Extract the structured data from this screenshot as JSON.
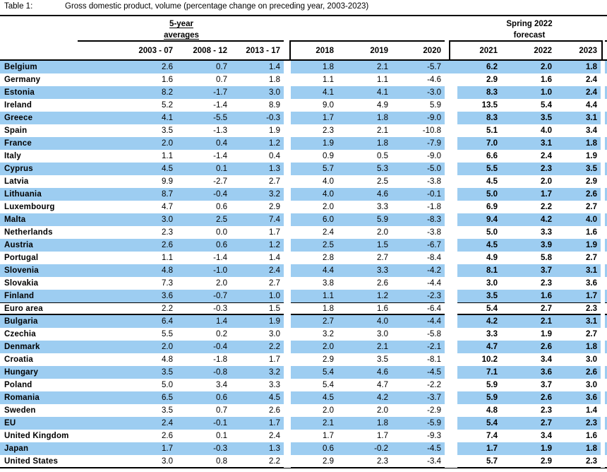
{
  "title": {
    "label": "Table 1:",
    "text": "Gross domestic product, volume (percentage change on preceding year, 2003-2023)"
  },
  "header": {
    "group1_line1": "5-year",
    "group1_line2": "averages",
    "group3_line1": "Spring 2022",
    "group3_line2": "forecast",
    "columns": [
      "2003 - 07",
      "2008 - 12",
      "2013 - 17",
      "2018",
      "2019",
      "2020",
      "2021",
      "2022",
      "2023"
    ]
  },
  "colors": {
    "row_highlight": "#9DCDF1",
    "row_plain": "#FFFFFF",
    "rule": "#000000"
  },
  "rows": [
    {
      "name": "Belgium",
      "shaded": true,
      "values": [
        "2.6",
        "0.7",
        "1.4",
        "1.8",
        "2.1",
        "-5.7",
        "6.2",
        "2.0",
        "1.8"
      ]
    },
    {
      "name": "Germany",
      "shaded": false,
      "values": [
        "1.6",
        "0.7",
        "1.8",
        "1.1",
        "1.1",
        "-4.6",
        "2.9",
        "1.6",
        "2.4"
      ]
    },
    {
      "name": "Estonia",
      "shaded": true,
      "values": [
        "8.2",
        "-1.7",
        "3.0",
        "4.1",
        "4.1",
        "-3.0",
        "8.3",
        "1.0",
        "2.4"
      ]
    },
    {
      "name": "Ireland",
      "shaded": false,
      "values": [
        "5.2",
        "-1.4",
        "8.9",
        "9.0",
        "4.9",
        "5.9",
        "13.5",
        "5.4",
        "4.4"
      ]
    },
    {
      "name": "Greece",
      "shaded": true,
      "values": [
        "4.1",
        "-5.5",
        "-0.3",
        "1.7",
        "1.8",
        "-9.0",
        "8.3",
        "3.5",
        "3.1"
      ]
    },
    {
      "name": "Spain",
      "shaded": false,
      "values": [
        "3.5",
        "-1.3",
        "1.9",
        "2.3",
        "2.1",
        "-10.8",
        "5.1",
        "4.0",
        "3.4"
      ]
    },
    {
      "name": "France",
      "shaded": true,
      "values": [
        "2.0",
        "0.4",
        "1.2",
        "1.9",
        "1.8",
        "-7.9",
        "7.0",
        "3.1",
        "1.8"
      ]
    },
    {
      "name": "Italy",
      "shaded": false,
      "values": [
        "1.1",
        "-1.4",
        "0.4",
        "0.9",
        "0.5",
        "-9.0",
        "6.6",
        "2.4",
        "1.9"
      ]
    },
    {
      "name": "Cyprus",
      "shaded": true,
      "values": [
        "4.5",
        "0.1",
        "1.3",
        "5.7",
        "5.3",
        "-5.0",
        "5.5",
        "2.3",
        "3.5"
      ]
    },
    {
      "name": "Latvia",
      "shaded": false,
      "values": [
        "9.9",
        "-2.7",
        "2.7",
        "4.0",
        "2.5",
        "-3.8",
        "4.5",
        "2.0",
        "2.9"
      ]
    },
    {
      "name": "Lithuania",
      "shaded": true,
      "values": [
        "8.7",
        "-0.4",
        "3.2",
        "4.0",
        "4.6",
        "-0.1",
        "5.0",
        "1.7",
        "2.6"
      ]
    },
    {
      "name": "Luxembourg",
      "shaded": false,
      "values": [
        "4.7",
        "0.6",
        "2.9",
        "2.0",
        "3.3",
        "-1.8",
        "6.9",
        "2.2",
        "2.7"
      ]
    },
    {
      "name": "Malta",
      "shaded": true,
      "values": [
        "3.0",
        "2.5",
        "7.4",
        "6.0",
        "5.9",
        "-8.3",
        "9.4",
        "4.2",
        "4.0"
      ]
    },
    {
      "name": "Netherlands",
      "shaded": false,
      "values": [
        "2.3",
        "0.0",
        "1.7",
        "2.4",
        "2.0",
        "-3.8",
        "5.0",
        "3.3",
        "1.6"
      ]
    },
    {
      "name": "Austria",
      "shaded": true,
      "values": [
        "2.6",
        "0.6",
        "1.2",
        "2.5",
        "1.5",
        "-6.7",
        "4.5",
        "3.9",
        "1.9"
      ]
    },
    {
      "name": "Portugal",
      "shaded": false,
      "values": [
        "1.1",
        "-1.4",
        "1.4",
        "2.8",
        "2.7",
        "-8.4",
        "4.9",
        "5.8",
        "2.7"
      ]
    },
    {
      "name": "Slovenia",
      "shaded": true,
      "values": [
        "4.8",
        "-1.0",
        "2.4",
        "4.4",
        "3.3",
        "-4.2",
        "8.1",
        "3.7",
        "3.1"
      ]
    },
    {
      "name": "Slovakia",
      "shaded": false,
      "values": [
        "7.3",
        "2.0",
        "2.7",
        "3.8",
        "2.6",
        "-4.4",
        "3.0",
        "2.3",
        "3.6"
      ]
    },
    {
      "name": "Finland",
      "shaded": true,
      "values": [
        "3.6",
        "-0.7",
        "1.0",
        "1.1",
        "1.2",
        "-2.3",
        "3.5",
        "1.6",
        "1.7"
      ]
    },
    {
      "name": "Euro area",
      "shaded": false,
      "values": [
        "2.2",
        "-0.3",
        "1.5",
        "1.8",
        "1.6",
        "-6.4",
        "5.4",
        "2.7",
        "2.3"
      ]
    },
    {
      "name": "Bulgaria",
      "shaded": true,
      "values": [
        "6.4",
        "1.4",
        "1.9",
        "2.7",
        "4.0",
        "-4.4",
        "4.2",
        "2.1",
        "3.1"
      ]
    },
    {
      "name": "Czechia",
      "shaded": false,
      "values": [
        "5.5",
        "0.2",
        "3.0",
        "3.2",
        "3.0",
        "-5.8",
        "3.3",
        "1.9",
        "2.7"
      ]
    },
    {
      "name": "Denmark",
      "shaded": true,
      "values": [
        "2.0",
        "-0.4",
        "2.2",
        "2.0",
        "2.1",
        "-2.1",
        "4.7",
        "2.6",
        "1.8"
      ]
    },
    {
      "name": "Croatia",
      "shaded": false,
      "values": [
        "4.8",
        "-1.8",
        "1.7",
        "2.9",
        "3.5",
        "-8.1",
        "10.2",
        "3.4",
        "3.0"
      ]
    },
    {
      "name": "Hungary",
      "shaded": true,
      "values": [
        "3.5",
        "-0.8",
        "3.2",
        "5.4",
        "4.6",
        "-4.5",
        "7.1",
        "3.6",
        "2.6"
      ]
    },
    {
      "name": "Poland",
      "shaded": false,
      "values": [
        "5.0",
        "3.4",
        "3.3",
        "5.4",
        "4.7",
        "-2.2",
        "5.9",
        "3.7",
        "3.0"
      ]
    },
    {
      "name": "Romania",
      "shaded": true,
      "values": [
        "6.5",
        "0.6",
        "4.5",
        "4.5",
        "4.2",
        "-3.7",
        "5.9",
        "2.6",
        "3.6"
      ]
    },
    {
      "name": "Sweden",
      "shaded": false,
      "values": [
        "3.5",
        "0.7",
        "2.6",
        "2.0",
        "2.0",
        "-2.9",
        "4.8",
        "2.3",
        "1.4"
      ]
    },
    {
      "name": "EU",
      "shaded": true,
      "values": [
        "2.4",
        "-0.1",
        "1.7",
        "2.1",
        "1.8",
        "-5.9",
        "5.4",
        "2.7",
        "2.3"
      ]
    },
    {
      "name": "United Kingdom",
      "shaded": false,
      "values": [
        "2.6",
        "0.1",
        "2.4",
        "1.7",
        "1.7",
        "-9.3",
        "7.4",
        "3.4",
        "1.6"
      ]
    },
    {
      "name": "Japan",
      "shaded": true,
      "values": [
        "1.7",
        "-0.3",
        "1.3",
        "0.6",
        "-0.2",
        "-4.5",
        "1.7",
        "1.9",
        "1.8"
      ]
    },
    {
      "name": "United States",
      "shaded": false,
      "values": [
        "3.0",
        "0.8",
        "2.2",
        "2.9",
        "2.3",
        "-3.4",
        "5.7",
        "2.9",
        "2.3"
      ]
    }
  ]
}
